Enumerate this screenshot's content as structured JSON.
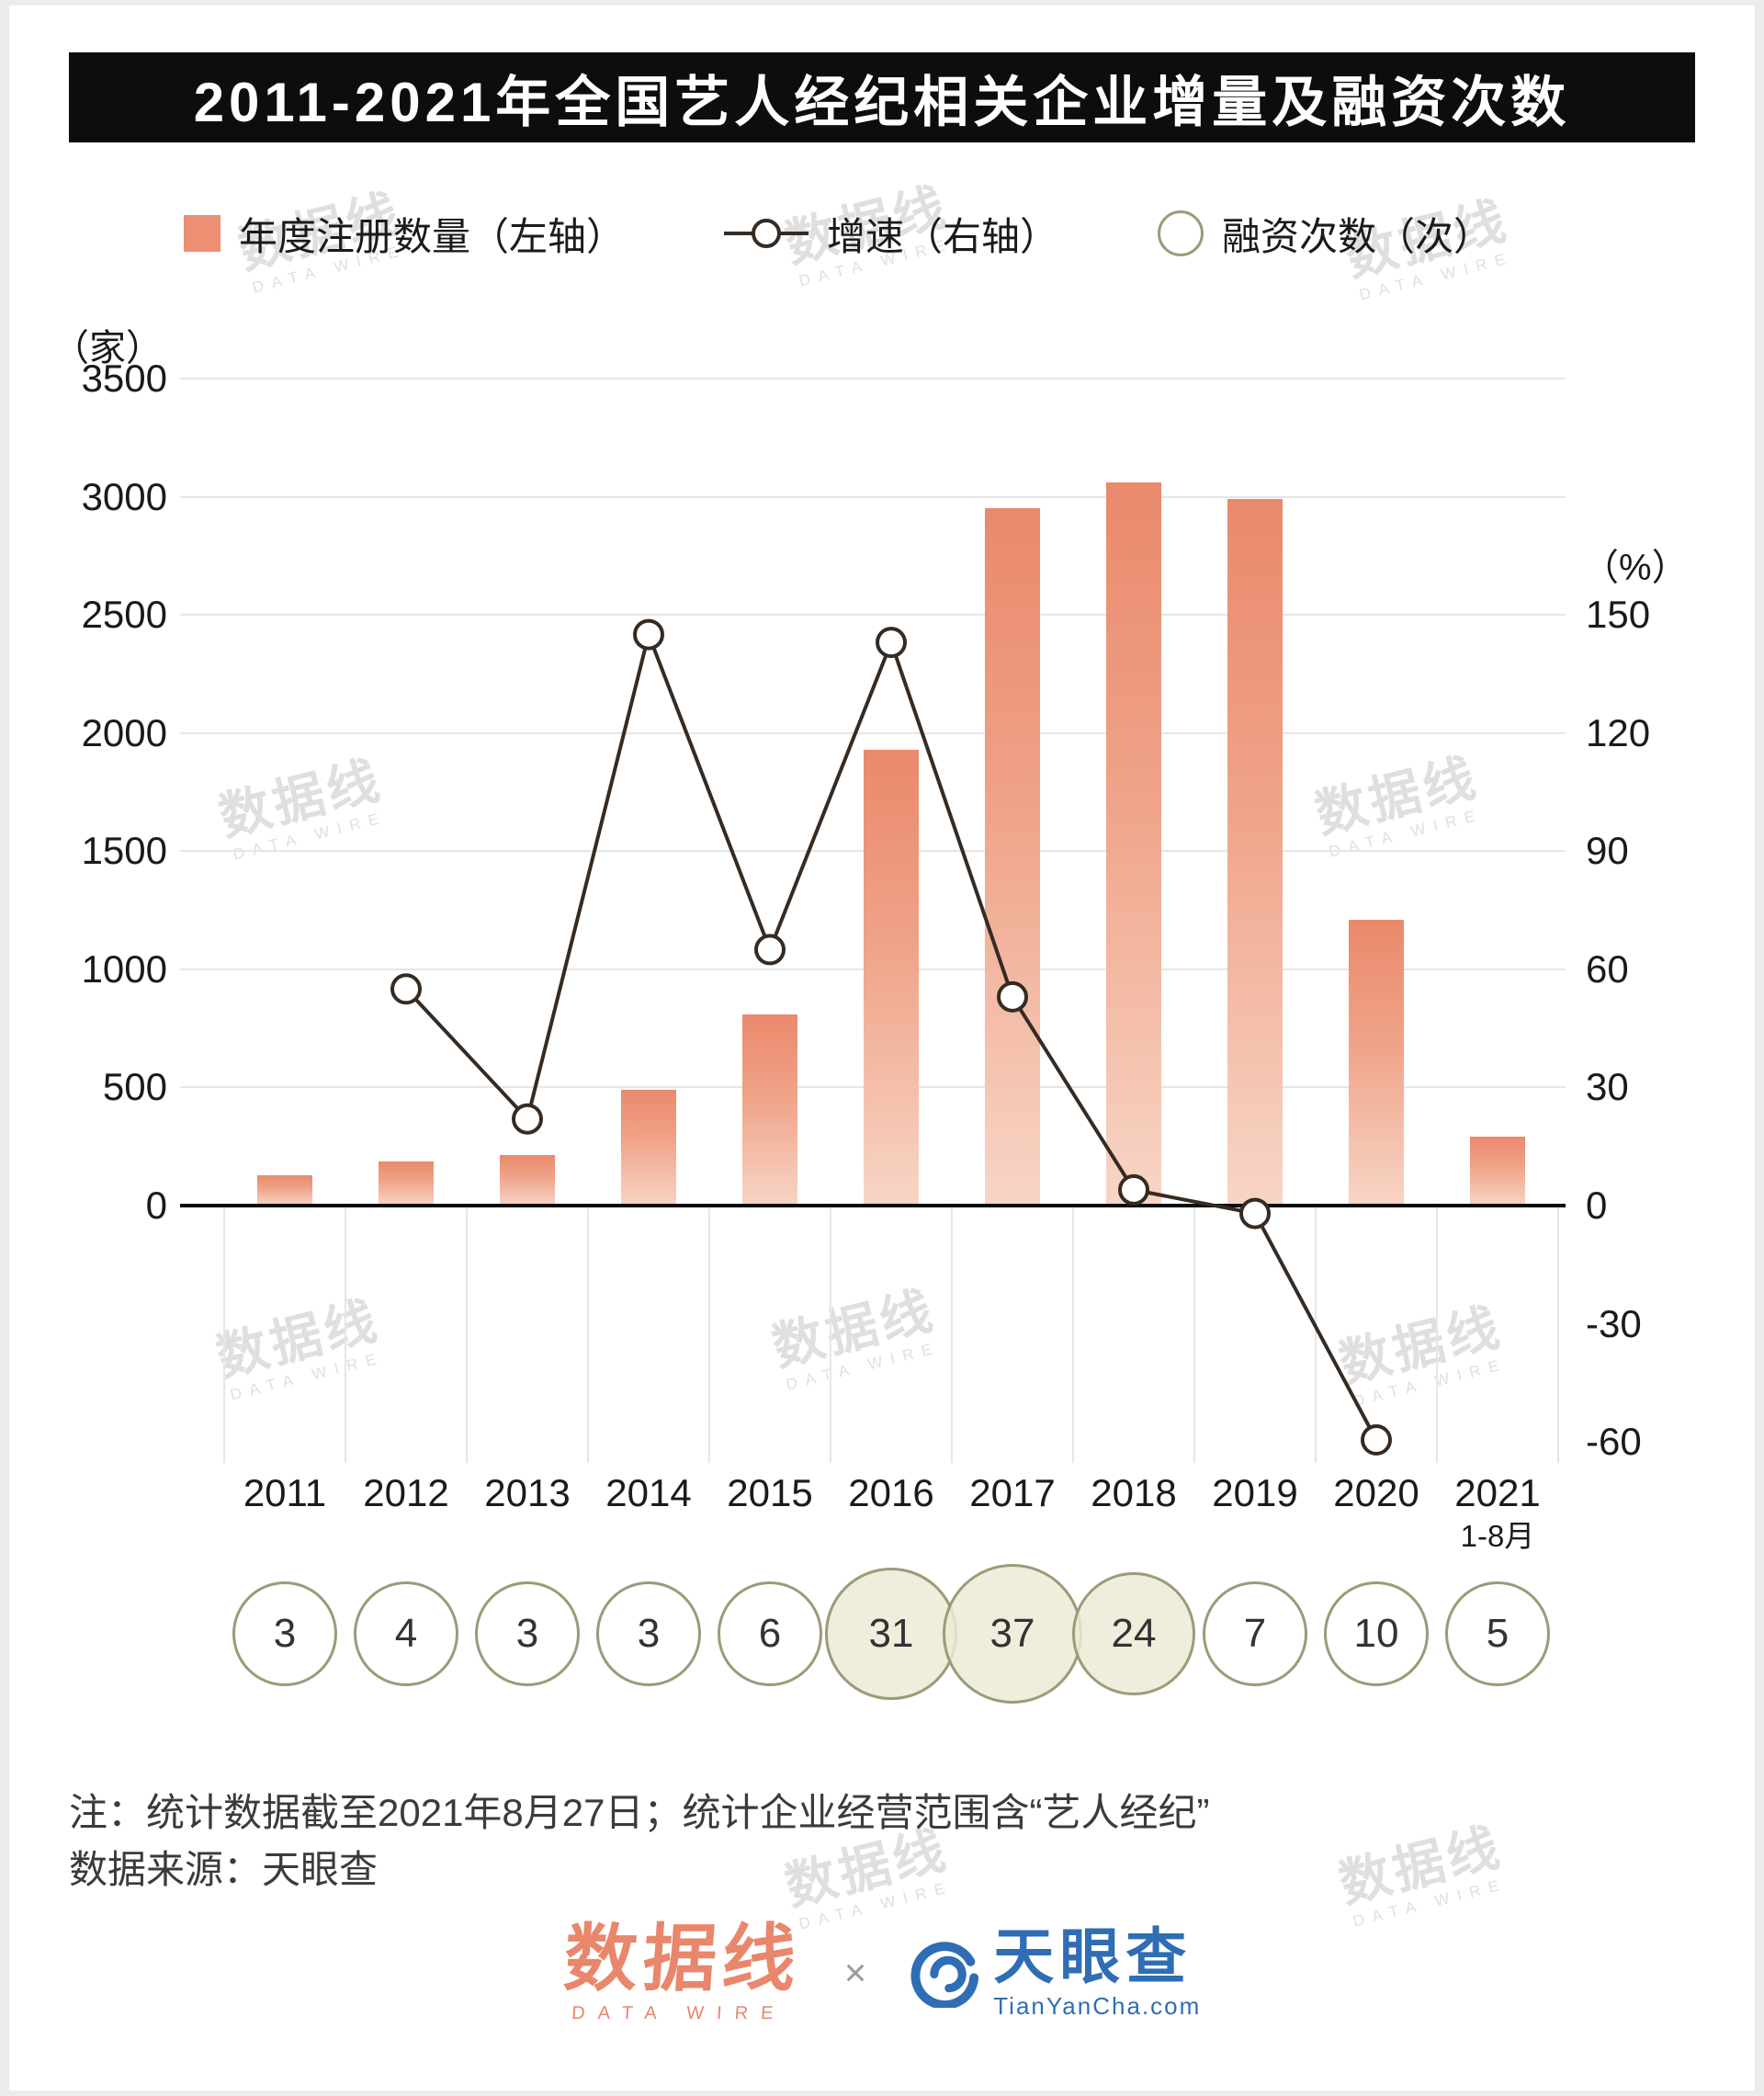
{
  "title": "2011-2021年全国艺人经纪相关企业增量及融资次数",
  "legend": {
    "bar_label": "年度注册数量（左轴）",
    "line_label": "增速（右轴）",
    "circle_label": "融资次数（次）"
  },
  "axes": {
    "left_unit": "（家）",
    "left_ticks": [
      3500,
      3000,
      2500,
      2000,
      1500,
      1000,
      500,
      0
    ],
    "right_unit": "（%）",
    "right_ticks": [
      150,
      120,
      90,
      60,
      30,
      0,
      -30,
      -60
    ]
  },
  "chart_data": {
    "type": "bar+line",
    "title": "2011-2021年全国艺人经纪相关企业增量及融资次数",
    "categories": [
      "2011",
      "2012",
      "2013",
      "2014",
      "2015",
      "2016",
      "2017",
      "2018",
      "2019",
      "2020",
      "2021"
    ],
    "last_category_sub": "1-8月",
    "series": [
      {
        "name": "年度注册数量（左轴）",
        "type": "bar",
        "axis": "left",
        "unit": "家",
        "values": [
          130,
          185,
          215,
          490,
          810,
          1930,
          2950,
          3060,
          2990,
          1210,
          290
        ]
      },
      {
        "name": "增速（右轴）",
        "type": "line",
        "axis": "right",
        "unit": "%",
        "values": [
          null,
          55,
          22,
          145,
          65,
          143,
          53,
          4,
          -2,
          -59.5,
          null
        ]
      },
      {
        "name": "融资次数（次）",
        "type": "circle",
        "unit": "次",
        "values": [
          3,
          4,
          3,
          3,
          6,
          31,
          37,
          24,
          7,
          10,
          5
        ]
      }
    ],
    "left_axis_range": [
      0,
      3500
    ],
    "right_axis_range": [
      -60,
      150
    ],
    "grid": true,
    "legend_position": "top"
  },
  "colors": {
    "bar_top": "#ea896c",
    "bar_bottom": "#f8d5c6",
    "line": "#352b23",
    "circle_stroke": "#9b9b78",
    "circle_fill": "rgba(236,234,214,0.85)",
    "title_bg": "#0d0d0d",
    "title_text": "#ffffff",
    "accent": "#e8876b",
    "tianyancha_blue": "#2f6db5"
  },
  "notes": {
    "line1": "注：统计数据截至2021年8月27日；统计企业经营范围含“艺人经纪”",
    "line2": "数据来源：天眼查"
  },
  "footer": {
    "datawire_cn": "数据线",
    "datawire_en": "DATA WIRE",
    "separator": "×",
    "tianyancha_cn": "天眼查",
    "tianyancha_en": "TianYanCha.com"
  },
  "watermark": {
    "cn": "数据线",
    "en": "DATA WIRE"
  }
}
